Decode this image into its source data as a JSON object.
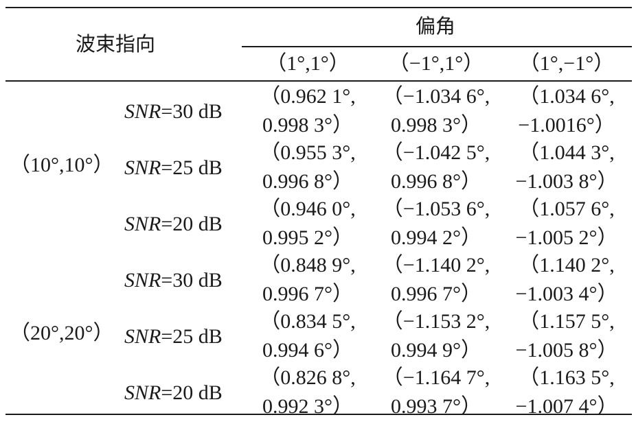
{
  "table": {
    "header": {
      "row_label": "波束指向",
      "group_label": "偏角",
      "columns": [
        "（1°,1°）",
        "（−1°,1°）",
        "（1°,−1°）"
      ]
    },
    "groups": [
      {
        "direction": "（10°,10°）",
        "rows": [
          {
            "snr_prefix": "SNR",
            "snr_value": "=30 dB",
            "cells": [
              [
                "（0.962 1°,",
                "0.998 3°）"
              ],
              [
                "（−1.034 6°,",
                "0.998 3°）"
              ],
              [
                "（1.034 6°,",
                "−1.0016°）"
              ]
            ]
          },
          {
            "snr_prefix": "SNR",
            "snr_value": "=25 dB",
            "cells": [
              [
                "（0.955 3°,",
                "0.996 8°）"
              ],
              [
                "（−1.042 5°,",
                "0.996 8°）"
              ],
              [
                "（1.044 3°,",
                "−1.003 8°）"
              ]
            ]
          },
          {
            "snr_prefix": "SNR",
            "snr_value": "=20 dB",
            "cells": [
              [
                "（0.946 0°,",
                "0.995 2°）"
              ],
              [
                "（−1.053 6°,",
                "0.994 2°）"
              ],
              [
                "（1.057 6°,",
                "−1.005 2°）"
              ]
            ]
          }
        ]
      },
      {
        "direction": "（20°,20°）",
        "rows": [
          {
            "snr_prefix": "SNR",
            "snr_value": "=30 dB",
            "cells": [
              [
                "（0.848 9°,",
                "0.996 7°）"
              ],
              [
                "（−1.140 2°,",
                "0.996 7°）"
              ],
              [
                "（1.140 2°,",
                "−1.003 4°）"
              ]
            ]
          },
          {
            "snr_prefix": "SNR",
            "snr_value": "=25 dB",
            "cells": [
              [
                "（0.834 5°,",
                "0.994 6°）"
              ],
              [
                "（−1.153 2°,",
                "0.994 9°）"
              ],
              [
                "（1.157 5°,",
                "−1.005 8°）"
              ]
            ]
          },
          {
            "snr_prefix": "SNR",
            "snr_value": "=20 dB",
            "cells": [
              [
                "（0.826 8°,",
                "0.992 3°）"
              ],
              [
                "（−1.164 7°,",
                "0.993 7°）"
              ],
              [
                "（1.163 5°,",
                "−1.007 4°）"
              ]
            ]
          }
        ]
      }
    ]
  }
}
